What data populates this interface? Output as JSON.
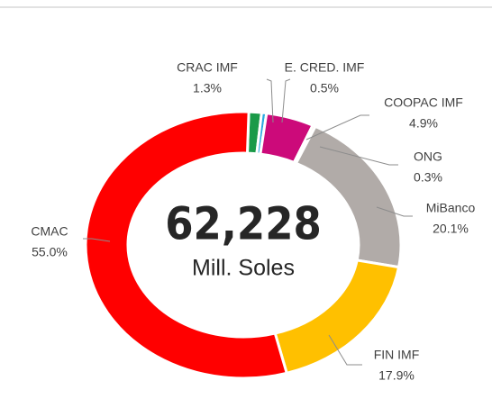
{
  "chart_data": {
    "type": "donut",
    "categories": [
      "CRAC IMF",
      "E. CRED. IMF",
      "COOPAC IMF",
      "ONG",
      "MiBanco",
      "FIN IMF",
      "CMAC"
    ],
    "values": [
      1.3,
      0.5,
      4.9,
      0.3,
      20.1,
      17.9,
      55.0
    ],
    "value_labels": [
      "1.3%",
      "0.5%",
      "4.9%",
      "0.3%",
      "20.1%",
      "17.9%",
      "55.0%"
    ],
    "colors": [
      "#1a9a48",
      "#2aa8e0",
      "#cc0a7a",
      "#f4a07a",
      "#b1aba8",
      "#ffc000",
      "#ff0000"
    ],
    "center_label": "62,228",
    "center_sublabel": "Mill. Soles"
  }
}
